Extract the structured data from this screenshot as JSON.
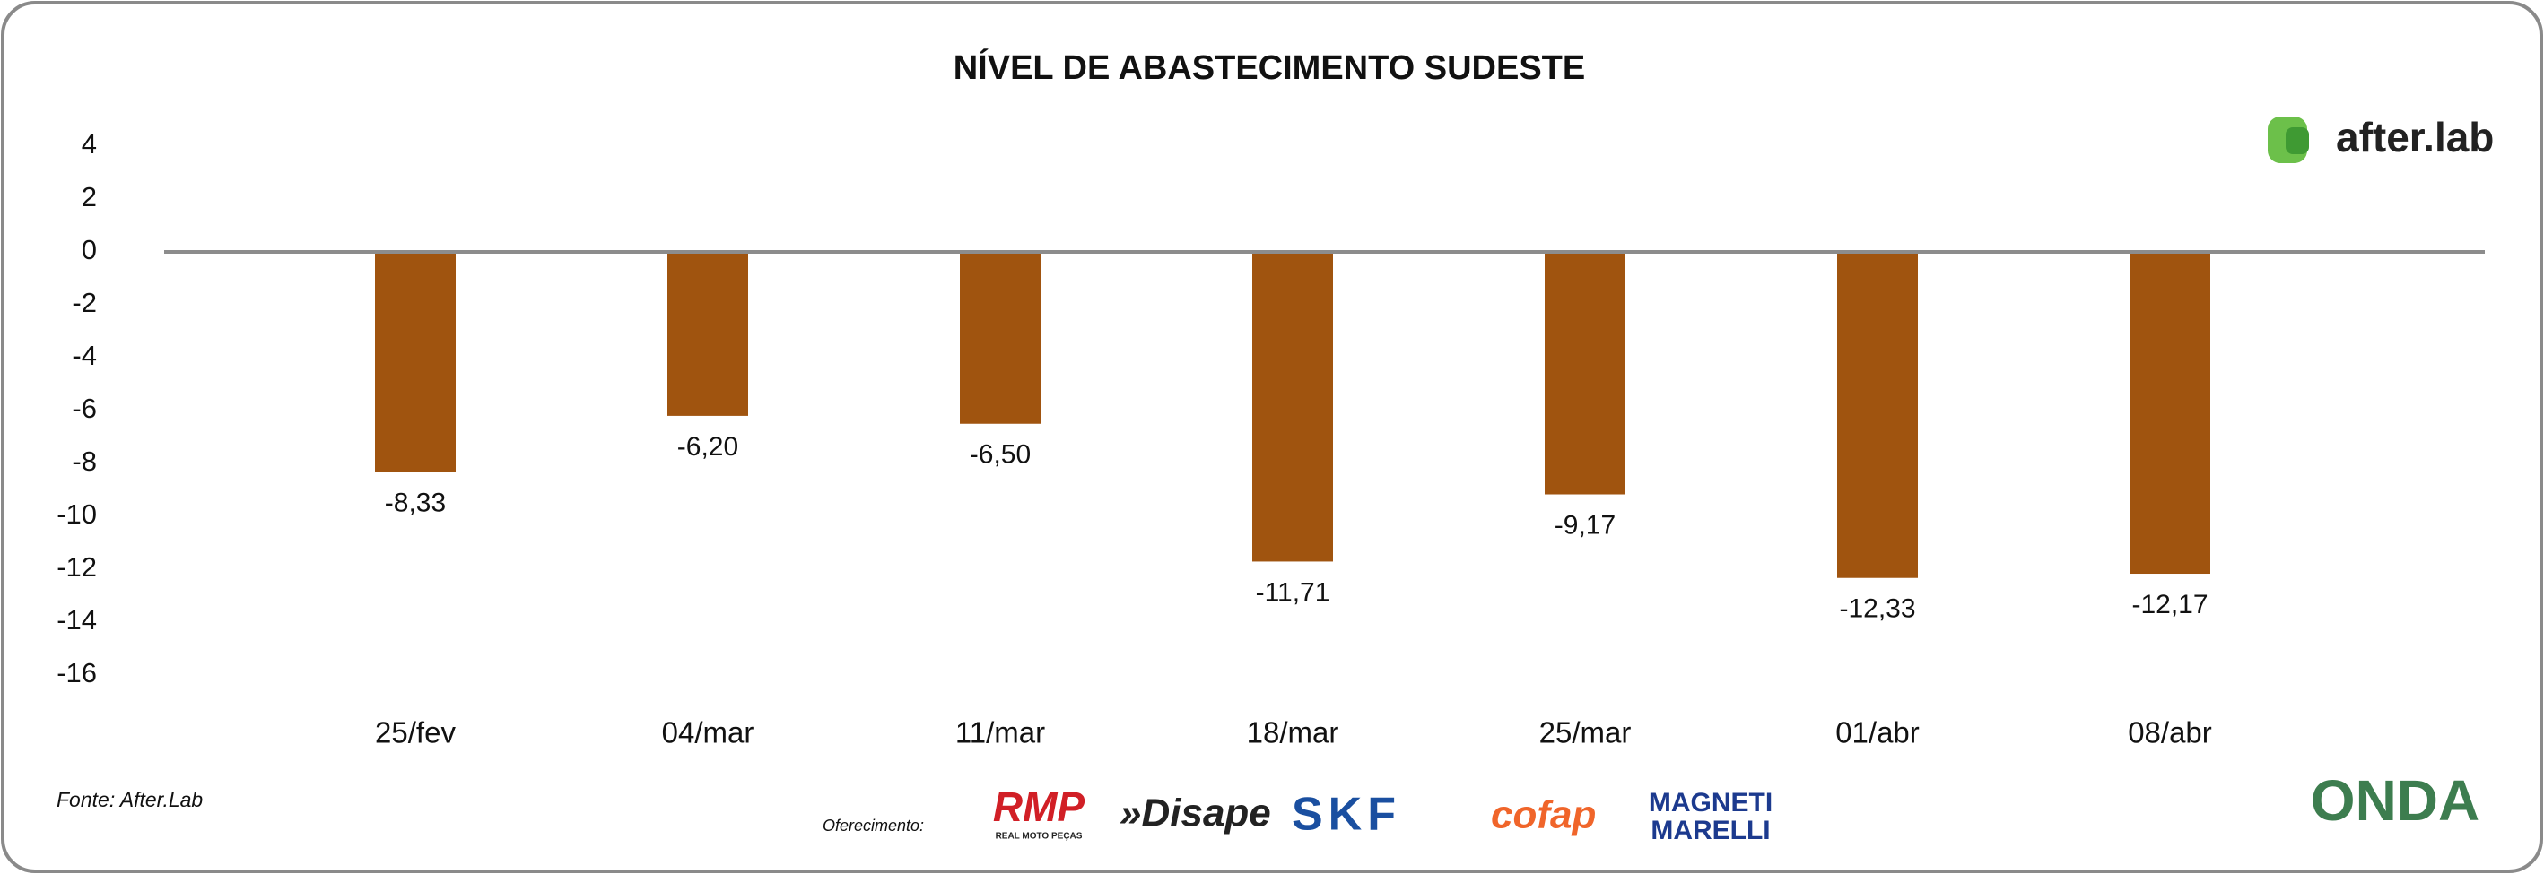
{
  "chart_data": {
    "type": "bar",
    "title": "NÍVEL DE ABASTECIMENTO SUDESTE",
    "categories": [
      "25/fev",
      "04/mar",
      "11/mar",
      "18/mar",
      "25/mar",
      "01/abr",
      "08/abr"
    ],
    "values": [
      -8.33,
      -6.2,
      -6.5,
      -11.71,
      -9.17,
      -12.33,
      -12.17
    ],
    "value_labels": [
      "-8,33",
      "-6,20",
      "-6,50",
      "-11,71",
      "-9,17",
      "-12,33",
      "-12,17"
    ],
    "color": "#a0540f",
    "ylim": [
      -16,
      4
    ],
    "yticks": [
      4,
      2,
      0,
      -2,
      -4,
      -6,
      -8,
      -10,
      -12,
      -14,
      -16
    ]
  },
  "brand": "after.lab",
  "source": "Fonte: After.Lab",
  "sponsor_label": "Oferecimento:",
  "sponsors": {
    "rmp": "RMP",
    "rmp_sub": "REAL MOTO PEÇAS",
    "disape": "»Disape",
    "skf": "SKF",
    "cofap": "cofap",
    "magneti": "MAGNETI",
    "marelli": "MARELLI"
  },
  "onda": "ONDA"
}
